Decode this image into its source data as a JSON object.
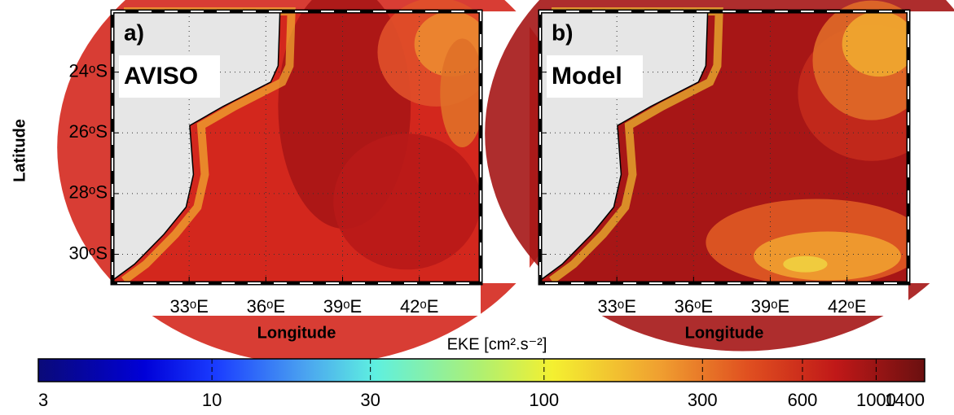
{
  "panels": [
    {
      "label": "a)",
      "name": "AVISO"
    },
    {
      "label": "b)",
      "name": "Model"
    }
  ],
  "y_axis": {
    "title": "Latitude",
    "lim": [
      -30.95,
      -22
    ],
    "ticks": [
      {
        "value": -24,
        "label": "24ᵒS"
      },
      {
        "value": -26,
        "label": "26ᵒS"
      },
      {
        "value": -28,
        "label": "28ᵒS"
      },
      {
        "value": -30,
        "label": "30ᵒS"
      }
    ]
  },
  "x_axis": {
    "title": "Longitude",
    "lim": [
      30,
      44.4
    ],
    "ticks": [
      {
        "value": 33,
        "label": "33ᵒE"
      },
      {
        "value": 36,
        "label": "36ᵒE"
      },
      {
        "value": 39,
        "label": "39ᵒE"
      },
      {
        "value": 42,
        "label": "42ᵒE"
      }
    ]
  },
  "colorbar": {
    "title": "EKE [cm².s⁻²]",
    "scale": "log",
    "lim": [
      3,
      1400
    ],
    "ticks": [
      3,
      10,
      30,
      100,
      300,
      600,
      1000,
      1400
    ]
  }
}
